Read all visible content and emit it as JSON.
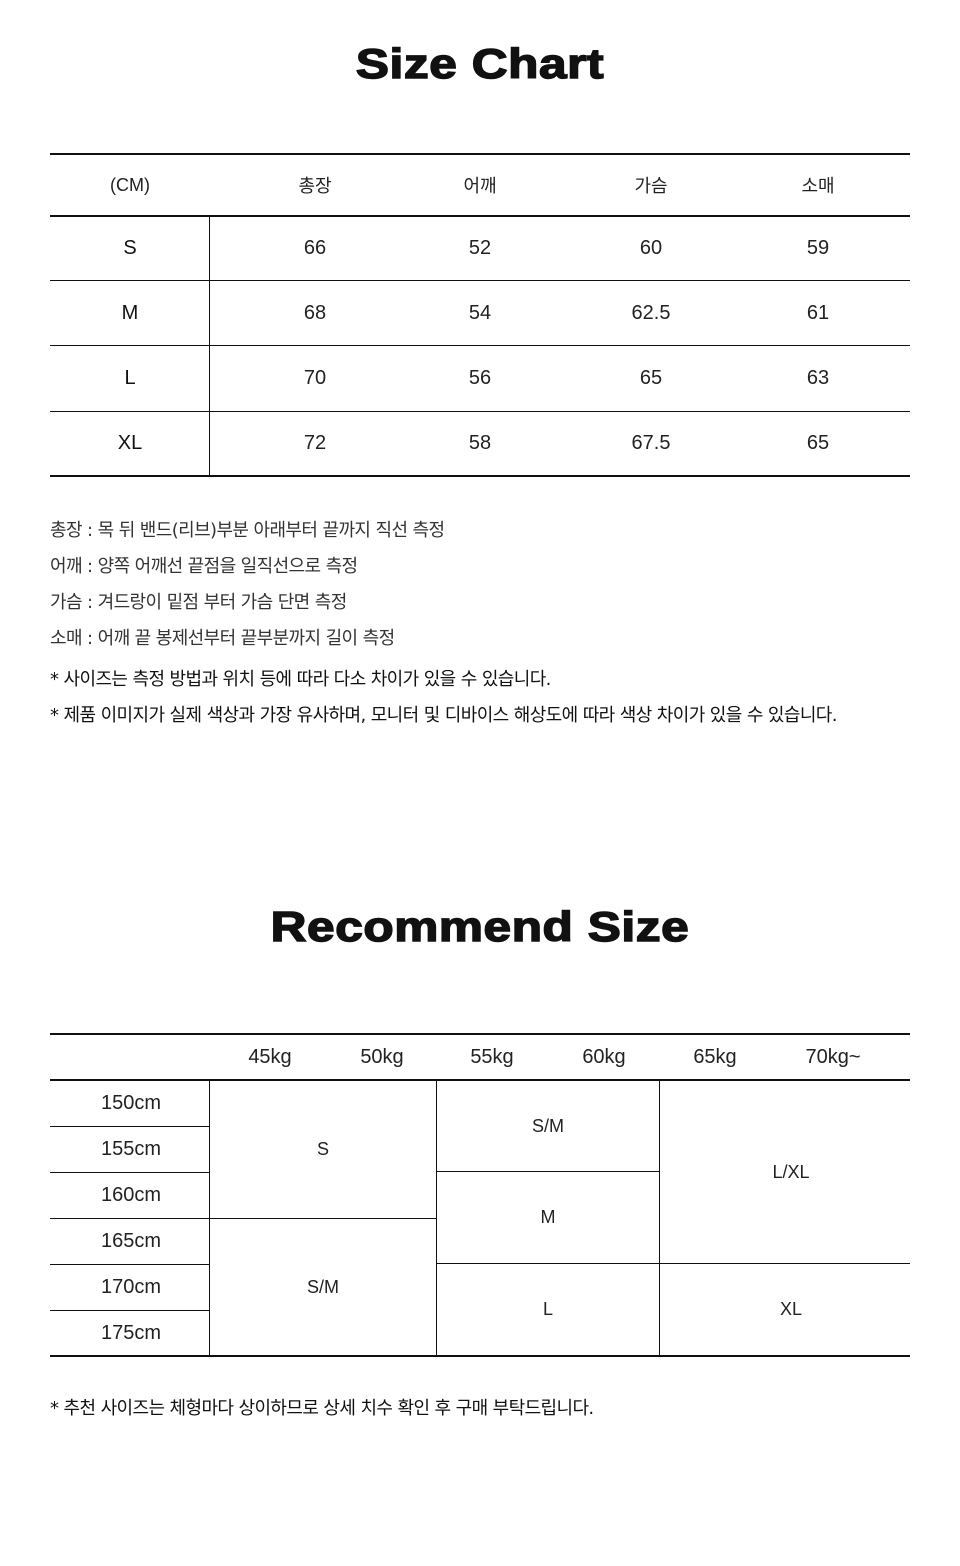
{
  "size_chart": {
    "title": "Size Chart",
    "headers": [
      "(CM)",
      "총장",
      "어깨",
      "가슴",
      "소매"
    ],
    "rows": [
      {
        "size": "S",
        "values": [
          "66",
          "52",
          "60",
          "59"
        ]
      },
      {
        "size": "M",
        "values": [
          "68",
          "54",
          "62.5",
          "61"
        ]
      },
      {
        "size": "L",
        "values": [
          "70",
          "56",
          "65",
          "63"
        ]
      },
      {
        "size": "XL",
        "values": [
          "72",
          "58",
          "67.5",
          "65"
        ]
      }
    ],
    "notes": [
      "총장 : 목 뒤 밴드(리브)부분 아래부터 끝까지 직선 측정",
      "어깨 : 양쪽 어깨선 끝점을 일직선으로 측정",
      "가슴 : 겨드랑이 밑점 부터 가슴 단면 측정",
      "소매 : 어깨 끝 봉제선부터 끝부분까지 길이 측정"
    ],
    "disclaimers": [
      "* 사이즈는 측정 방법과 위치 등에 따라 다소 차이가 있을 수 있습니다.",
      "* 제품 이미지가 실제 색상과 가장 유사하며, 모니터 및 디바이스 해상도에 따라 색상 차이가 있을 수 있습니다."
    ]
  },
  "recommend": {
    "title": "Recommend Size",
    "weights": [
      "45kg",
      "50kg",
      "55kg",
      "60kg",
      "65kg",
      "70kg~"
    ],
    "heights": [
      "150cm",
      "155cm",
      "160cm",
      "165cm",
      "170cm",
      "175cm"
    ],
    "cells": [
      "S",
      "S/M",
      "S/M",
      "M",
      "L",
      "L/XL",
      "XL"
    ],
    "note": "* 추천 사이즈는 체형마다 상이하므로 상세 치수 확인 후 구매 부탁드립니다."
  }
}
